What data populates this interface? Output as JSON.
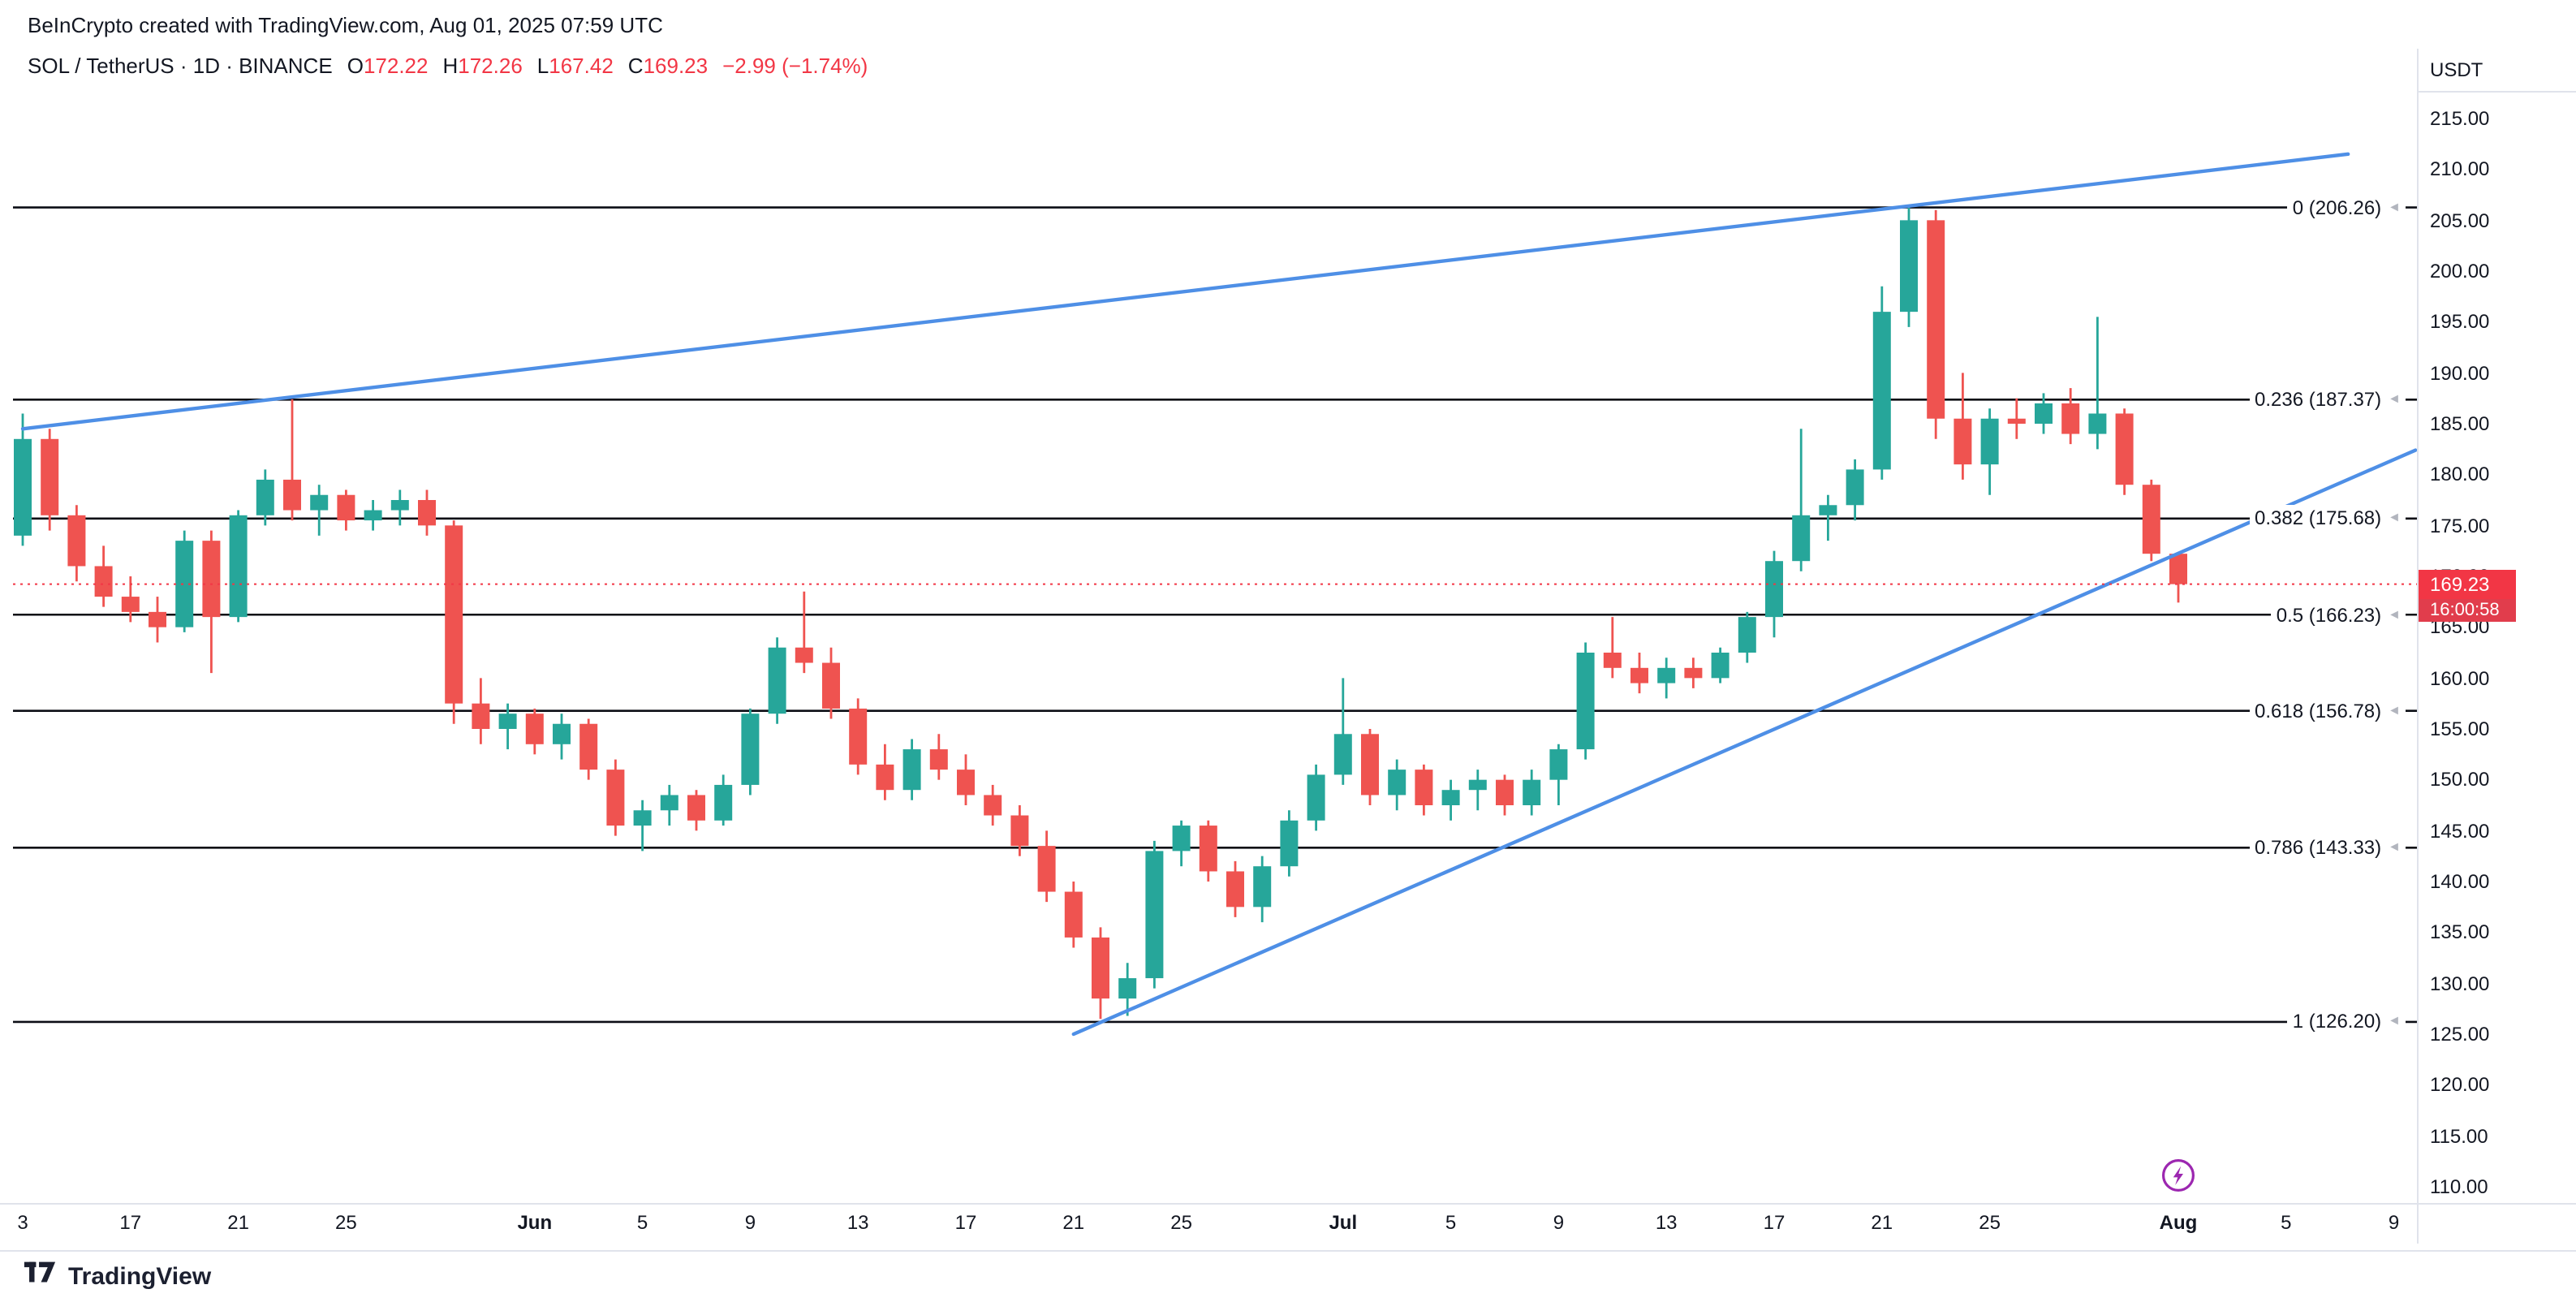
{
  "attribution": "BeInCrypto created with TradingView.com, Aug 01, 2025 07:59 UTC",
  "symbol_row": {
    "title": "SOL / TetherUS · 1D · BINANCE",
    "o_label": "O",
    "o": "172.22",
    "h_label": "H",
    "h": "172.26",
    "l_label": "L",
    "l": "167.42",
    "c_label": "C",
    "c": "169.23",
    "change": "−2.99 (−1.74%)"
  },
  "price_axis": {
    "currency": "USDT",
    "ticks": [
      "215.00",
      "210.00",
      "205.00",
      "200.00",
      "195.00",
      "190.00",
      "185.00",
      "180.00",
      "175.00",
      "170.00",
      "165.00",
      "160.00",
      "155.00",
      "150.00",
      "145.00",
      "140.00",
      "135.00",
      "130.00",
      "125.00",
      "120.00",
      "115.00",
      "110.00"
    ],
    "current_price": "169.23",
    "countdown": "16:00:58"
  },
  "time_axis": {
    "labels": [
      {
        "text": "3",
        "i": 0,
        "month": false
      },
      {
        "text": "17",
        "i": 4,
        "month": false
      },
      {
        "text": "21",
        "i": 8,
        "month": false
      },
      {
        "text": "25",
        "i": 12,
        "month": false
      },
      {
        "text": "Jun",
        "i": 19,
        "month": true
      },
      {
        "text": "5",
        "i": 23,
        "month": false
      },
      {
        "text": "9",
        "i": 27,
        "month": false
      },
      {
        "text": "13",
        "i": 31,
        "month": false
      },
      {
        "text": "17",
        "i": 35,
        "month": false
      },
      {
        "text": "21",
        "i": 39,
        "month": false
      },
      {
        "text": "25",
        "i": 43,
        "month": false
      },
      {
        "text": "Jul",
        "i": 49,
        "month": true
      },
      {
        "text": "5",
        "i": 53,
        "month": false
      },
      {
        "text": "9",
        "i": 57,
        "month": false
      },
      {
        "text": "13",
        "i": 61,
        "month": false
      },
      {
        "text": "17",
        "i": 65,
        "month": false
      },
      {
        "text": "21",
        "i": 69,
        "month": false
      },
      {
        "text": "25",
        "i": 73,
        "month": false
      },
      {
        "text": "Aug",
        "i": 80,
        "month": true
      },
      {
        "text": "5",
        "i": 84,
        "month": false
      },
      {
        "text": "9",
        "i": 88,
        "month": false
      }
    ]
  },
  "footer": {
    "logo_text": "TradingView"
  },
  "colors": {
    "up": "#26a69a",
    "down": "#ef5350",
    "badge": "#f23645",
    "trendline": "#4e8fe6",
    "fib_line": "#0c0e15",
    "axis_text": "#131722",
    "border": "#e0e3eb",
    "purple": "#9c27b0"
  },
  "chart_data": {
    "type": "candlestick",
    "title": "SOL / TetherUS · 1D · BINANCE",
    "ylabel": "Price (USDT)",
    "y_range": [
      110,
      215
    ],
    "current_price": 169.23,
    "fib_levels": [
      {
        "label": "0 (206.26)",
        "price": 206.26
      },
      {
        "label": "0.236 (187.37)",
        "price": 187.37
      },
      {
        "label": "0.382 (175.68)",
        "price": 175.68
      },
      {
        "label": "0.5 (166.23)",
        "price": 166.23
      },
      {
        "label": "0.618 (156.78)",
        "price": 156.78
      },
      {
        "label": "0.786 (143.33)",
        "price": 143.33
      },
      {
        "label": "1 (126.20)",
        "price": 126.2
      }
    ],
    "trendlines": [
      {
        "name": "upper-resistance-trendline",
        "i1": 0,
        "p1": 184.5,
        "i2": 86.3,
        "p2": 211.5
      },
      {
        "name": "lower-support-trendline",
        "i1": 39,
        "p1": 125.0,
        "i2": 88.8,
        "p2": 182.4
      }
    ],
    "candles": [
      {
        "d": "May 13",
        "o": 174.0,
        "h": 186.0,
        "l": 173.0,
        "c": 183.5
      },
      {
        "d": "May 14",
        "o": 183.5,
        "h": 184.5,
        "l": 174.5,
        "c": 176.0
      },
      {
        "d": "May 15",
        "o": 176.0,
        "h": 177.0,
        "l": 169.5,
        "c": 171.0
      },
      {
        "d": "May 16",
        "o": 171.0,
        "h": 173.0,
        "l": 167.0,
        "c": 168.0
      },
      {
        "d": "May 17",
        "o": 168.0,
        "h": 170.0,
        "l": 165.5,
        "c": 166.5
      },
      {
        "d": "May 18",
        "o": 166.5,
        "h": 168.0,
        "l": 163.5,
        "c": 165.0
      },
      {
        "d": "May 19",
        "o": 165.0,
        "h": 174.5,
        "l": 164.5,
        "c": 173.5
      },
      {
        "d": "May 20",
        "o": 173.5,
        "h": 174.5,
        "l": 160.5,
        "c": 166.0
      },
      {
        "d": "May 21",
        "o": 166.0,
        "h": 176.5,
        "l": 165.5,
        "c": 176.0
      },
      {
        "d": "May 22",
        "o": 176.0,
        "h": 180.5,
        "l": 175.0,
        "c": 179.5
      },
      {
        "d": "May 23",
        "o": 179.5,
        "h": 187.4,
        "l": 175.5,
        "c": 176.5
      },
      {
        "d": "May 24",
        "o": 176.5,
        "h": 179.0,
        "l": 174.0,
        "c": 178.0
      },
      {
        "d": "May 25",
        "o": 178.0,
        "h": 178.5,
        "l": 174.5,
        "c": 175.5
      },
      {
        "d": "May 26",
        "o": 175.5,
        "h": 177.5,
        "l": 174.5,
        "c": 176.5
      },
      {
        "d": "May 27",
        "o": 176.5,
        "h": 178.5,
        "l": 175.0,
        "c": 177.5
      },
      {
        "d": "May 28",
        "o": 177.5,
        "h": 178.5,
        "l": 174.0,
        "c": 175.0
      },
      {
        "d": "May 29",
        "o": 175.0,
        "h": 175.5,
        "l": 155.5,
        "c": 157.5
      },
      {
        "d": "May 30",
        "o": 157.5,
        "h": 160.0,
        "l": 153.5,
        "c": 155.0
      },
      {
        "d": "May 31",
        "o": 155.0,
        "h": 157.5,
        "l": 153.0,
        "c": 156.5
      },
      {
        "d": "Jun 1",
        "o": 156.5,
        "h": 157.0,
        "l": 152.5,
        "c": 153.5
      },
      {
        "d": "Jun 2",
        "o": 153.5,
        "h": 156.5,
        "l": 152.0,
        "c": 155.5
      },
      {
        "d": "Jun 3",
        "o": 155.5,
        "h": 156.0,
        "l": 150.0,
        "c": 151.0
      },
      {
        "d": "Jun 4",
        "o": 151.0,
        "h": 152.0,
        "l": 144.5,
        "c": 145.5
      },
      {
        "d": "Jun 5",
        "o": 145.5,
        "h": 148.0,
        "l": 143.0,
        "c": 147.0
      },
      {
        "d": "Jun 6",
        "o": 147.0,
        "h": 149.5,
        "l": 145.5,
        "c": 148.5
      },
      {
        "d": "Jun 7",
        "o": 148.5,
        "h": 149.0,
        "l": 145.0,
        "c": 146.0
      },
      {
        "d": "Jun 8",
        "o": 146.0,
        "h": 150.5,
        "l": 145.5,
        "c": 149.5
      },
      {
        "d": "Jun 9",
        "o": 149.5,
        "h": 157.0,
        "l": 148.5,
        "c": 156.5
      },
      {
        "d": "Jun 10",
        "o": 156.5,
        "h": 164.0,
        "l": 155.5,
        "c": 163.0
      },
      {
        "d": "Jun 11",
        "o": 163.0,
        "h": 168.5,
        "l": 160.5,
        "c": 161.5
      },
      {
        "d": "Jun 12",
        "o": 161.5,
        "h": 163.0,
        "l": 156.0,
        "c": 157.0
      },
      {
        "d": "Jun 13",
        "o": 157.0,
        "h": 158.0,
        "l": 150.5,
        "c": 151.5
      },
      {
        "d": "Jun 14",
        "o": 151.5,
        "h": 153.5,
        "l": 148.0,
        "c": 149.0
      },
      {
        "d": "Jun 15",
        "o": 149.0,
        "h": 154.0,
        "l": 148.0,
        "c": 153.0
      },
      {
        "d": "Jun 16",
        "o": 153.0,
        "h": 154.5,
        "l": 150.0,
        "c": 151.0
      },
      {
        "d": "Jun 17",
        "o": 151.0,
        "h": 152.5,
        "l": 147.5,
        "c": 148.5
      },
      {
        "d": "Jun 18",
        "o": 148.5,
        "h": 149.5,
        "l": 145.5,
        "c": 146.5
      },
      {
        "d": "Jun 19",
        "o": 146.5,
        "h": 147.5,
        "l": 142.5,
        "c": 143.5
      },
      {
        "d": "Jun 20",
        "o": 143.5,
        "h": 145.0,
        "l": 138.0,
        "c": 139.0
      },
      {
        "d": "Jun 21",
        "o": 139.0,
        "h": 140.0,
        "l": 133.5,
        "c": 134.5
      },
      {
        "d": "Jun 22",
        "o": 134.5,
        "h": 135.5,
        "l": 126.5,
        "c": 128.5
      },
      {
        "d": "Jun 23",
        "o": 128.5,
        "h": 132.0,
        "l": 126.8,
        "c": 130.5
      },
      {
        "d": "Jun 24",
        "o": 130.5,
        "h": 144.0,
        "l": 129.5,
        "c": 143.0
      },
      {
        "d": "Jun 25",
        "o": 143.0,
        "h": 146.0,
        "l": 141.5,
        "c": 145.5
      },
      {
        "d": "Jun 26",
        "o": 145.5,
        "h": 146.0,
        "l": 140.0,
        "c": 141.0
      },
      {
        "d": "Jun 27",
        "o": 141.0,
        "h": 142.0,
        "l": 136.5,
        "c": 137.5
      },
      {
        "d": "Jun 28",
        "o": 137.5,
        "h": 142.5,
        "l": 136.0,
        "c": 141.5
      },
      {
        "d": "Jun 29",
        "o": 141.5,
        "h": 147.0,
        "l": 140.5,
        "c": 146.0
      },
      {
        "d": "Jun 30",
        "o": 146.0,
        "h": 151.5,
        "l": 145.0,
        "c": 150.5
      },
      {
        "d": "Jul 1",
        "o": 150.5,
        "h": 160.0,
        "l": 149.5,
        "c": 154.5
      },
      {
        "d": "Jul 2",
        "o": 154.5,
        "h": 155.0,
        "l": 147.5,
        "c": 148.5
      },
      {
        "d": "Jul 3",
        "o": 148.5,
        "h": 152.0,
        "l": 147.0,
        "c": 151.0
      },
      {
        "d": "Jul 4",
        "o": 151.0,
        "h": 151.5,
        "l": 146.5,
        "c": 147.5
      },
      {
        "d": "Jul 5",
        "o": 147.5,
        "h": 150.0,
        "l": 146.0,
        "c": 149.0
      },
      {
        "d": "Jul 6",
        "o": 149.0,
        "h": 151.0,
        "l": 147.0,
        "c": 150.0
      },
      {
        "d": "Jul 7",
        "o": 150.0,
        "h": 150.5,
        "l": 146.5,
        "c": 147.5
      },
      {
        "d": "Jul 8",
        "o": 147.5,
        "h": 151.0,
        "l": 146.5,
        "c": 150.0
      },
      {
        "d": "Jul 9",
        "o": 150.0,
        "h": 153.5,
        "l": 147.5,
        "c": 153.0
      },
      {
        "d": "Jul 10",
        "o": 153.0,
        "h": 163.5,
        "l": 152.0,
        "c": 162.5
      },
      {
        "d": "Jul 11",
        "o": 162.5,
        "h": 166.0,
        "l": 160.0,
        "c": 161.0
      },
      {
        "d": "Jul 12",
        "o": 161.0,
        "h": 162.5,
        "l": 158.5,
        "c": 159.5
      },
      {
        "d": "Jul 13",
        "o": 159.5,
        "h": 162.0,
        "l": 158.0,
        "c": 161.0
      },
      {
        "d": "Jul 14",
        "o": 161.0,
        "h": 162.0,
        "l": 159.0,
        "c": 160.0
      },
      {
        "d": "Jul 15",
        "o": 160.0,
        "h": 163.0,
        "l": 159.5,
        "c": 162.5
      },
      {
        "d": "Jul 16",
        "o": 162.5,
        "h": 166.5,
        "l": 161.5,
        "c": 166.0
      },
      {
        "d": "Jul 17",
        "o": 166.0,
        "h": 172.5,
        "l": 164.0,
        "c": 171.5
      },
      {
        "d": "Jul 18",
        "o": 171.5,
        "h": 184.5,
        "l": 170.5,
        "c": 176.0
      },
      {
        "d": "Jul 19",
        "o": 176.0,
        "h": 178.0,
        "l": 173.5,
        "c": 177.0
      },
      {
        "d": "Jul 20",
        "o": 177.0,
        "h": 181.5,
        "l": 175.5,
        "c": 180.5
      },
      {
        "d": "Jul 21",
        "o": 180.5,
        "h": 198.5,
        "l": 179.5,
        "c": 196.0
      },
      {
        "d": "Jul 22",
        "o": 196.0,
        "h": 206.26,
        "l": 194.5,
        "c": 205.0
      },
      {
        "d": "Jul 23",
        "o": 205.0,
        "h": 206.0,
        "l": 183.5,
        "c": 185.5
      },
      {
        "d": "Jul 24",
        "o": 185.5,
        "h": 190.0,
        "l": 179.5,
        "c": 181.0
      },
      {
        "d": "Jul 25",
        "o": 181.0,
        "h": 186.5,
        "l": 178.0,
        "c": 185.5
      },
      {
        "d": "Jul 26",
        "o": 185.5,
        "h": 187.5,
        "l": 183.5,
        "c": 185.0
      },
      {
        "d": "Jul 27",
        "o": 185.0,
        "h": 188.0,
        "l": 184.0,
        "c": 187.0
      },
      {
        "d": "Jul 28",
        "o": 187.0,
        "h": 188.5,
        "l": 183.0,
        "c": 184.0
      },
      {
        "d": "Jul 29",
        "o": 184.0,
        "h": 195.5,
        "l": 182.5,
        "c": 186.0
      },
      {
        "d": "Jul 30",
        "o": 186.0,
        "h": 186.5,
        "l": 178.0,
        "c": 179.0
      },
      {
        "d": "Jul 31",
        "o": 179.0,
        "h": 179.5,
        "l": 171.5,
        "c": 172.22
      },
      {
        "d": "Aug 1",
        "o": 172.22,
        "h": 172.26,
        "l": 167.42,
        "c": 169.23
      }
    ]
  }
}
